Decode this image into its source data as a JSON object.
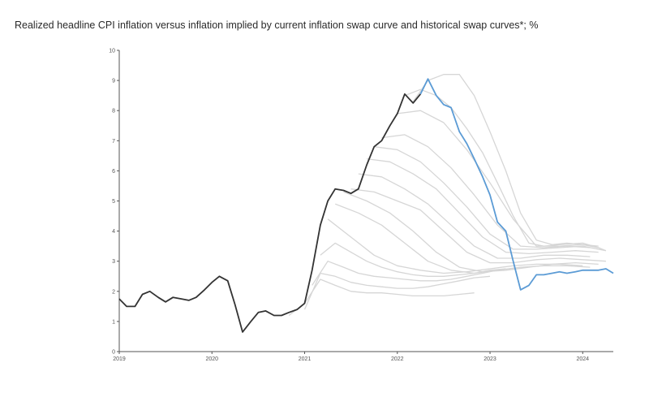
{
  "chart_data": {
    "type": "line",
    "title": "Realized headline CPI inflation versus inflation implied by current inflation swap curve and historical swap curves*; %",
    "xlabel": "",
    "ylabel": "",
    "ylim": [
      0,
      10
    ],
    "yticks": [
      0,
      1,
      2,
      3,
      4,
      5,
      6,
      7,
      8,
      9,
      10
    ],
    "xlim": [
      2019,
      2024.33
    ],
    "xticks": [
      2019,
      2020,
      2021,
      2022,
      2023,
      2024
    ],
    "grid": false,
    "colors": {
      "realized": "#333333",
      "current_swap": "#5b9bd5",
      "historical_swap": "#d6d6d6"
    },
    "realized": {
      "x": [
        2019.0,
        2019.08,
        2019.17,
        2019.25,
        2019.33,
        2019.42,
        2019.5,
        2019.58,
        2019.67,
        2019.75,
        2019.83,
        2019.92,
        2020.0,
        2020.08,
        2020.17,
        2020.25,
        2020.33,
        2020.42,
        2020.5,
        2020.58,
        2020.67,
        2020.75,
        2020.83,
        2020.92,
        2021.0,
        2021.08,
        2021.17,
        2021.25,
        2021.33,
        2021.42,
        2021.5,
        2021.58,
        2021.67,
        2021.75,
        2021.83,
        2021.92,
        2022.0,
        2022.08,
        2022.17,
        2022.25
      ],
      "y": [
        1.75,
        1.5,
        1.5,
        1.9,
        2.0,
        1.8,
        1.65,
        1.8,
        1.75,
        1.7,
        1.8,
        2.05,
        2.3,
        2.5,
        2.35,
        1.55,
        0.65,
        1.0,
        1.3,
        1.35,
        1.2,
        1.2,
        1.3,
        1.4,
        1.6,
        2.7,
        4.2,
        5.0,
        5.4,
        5.35,
        5.25,
        5.4,
        6.2,
        6.8,
        7.0,
        7.5,
        7.9,
        8.55,
        8.25,
        8.55
      ]
    },
    "current_swap": {
      "x": [
        2022.25,
        2022.33,
        2022.42,
        2022.5,
        2022.58,
        2022.67,
        2022.75,
        2022.83,
        2022.92,
        2023.0,
        2023.08,
        2023.17,
        2023.25,
        2023.33,
        2023.42,
        2023.5,
        2023.58,
        2023.67,
        2023.75,
        2023.83,
        2023.92,
        2024.0,
        2024.08,
        2024.17,
        2024.25,
        2024.33
      ],
      "y": [
        8.55,
        9.05,
        8.5,
        8.2,
        8.1,
        7.3,
        6.9,
        6.4,
        5.8,
        5.2,
        4.3,
        4.0,
        3.0,
        2.05,
        2.2,
        2.55,
        2.55,
        2.6,
        2.65,
        2.6,
        2.65,
        2.7,
        2.7,
        2.7,
        2.75,
        2.6
      ]
    },
    "historical_swaps": [
      {
        "x": [
          2020.83,
          2021.0,
          2021.17,
          2021.33,
          2021.5,
          2021.67,
          2021.83,
          2022.0,
          2022.17,
          2022.33,
          2022.5,
          2022.67,
          2022.83
        ],
        "y": [
          1.2,
          1.6,
          2.4,
          2.2,
          2.0,
          1.95,
          1.95,
          1.9,
          1.85,
          1.85,
          1.85,
          1.9,
          1.95
        ]
      },
      {
        "x": [
          2021.0,
          2021.17,
          2021.33,
          2021.5,
          2021.67,
          2021.83,
          2022.0,
          2022.17,
          2022.33,
          2022.5,
          2022.67,
          2022.83,
          2023.0
        ],
        "y": [
          1.4,
          2.6,
          2.5,
          2.3,
          2.2,
          2.15,
          2.1,
          2.1,
          2.15,
          2.25,
          2.35,
          2.45,
          2.5
        ]
      },
      {
        "x": [
          2021.08,
          2021.25,
          2021.42,
          2021.58,
          2021.75,
          2021.92,
          2022.08,
          2022.25,
          2022.42,
          2022.58,
          2022.75,
          2022.92,
          2023.08
        ],
        "y": [
          2.2,
          3.0,
          2.8,
          2.6,
          2.5,
          2.45,
          2.4,
          2.35,
          2.35,
          2.4,
          2.5,
          2.6,
          2.7
        ]
      },
      {
        "x": [
          2021.17,
          2021.33,
          2021.5,
          2021.67,
          2021.83,
          2022.0,
          2022.17,
          2022.33,
          2022.5,
          2022.67,
          2022.83,
          2023.0,
          2023.17
        ],
        "y": [
          3.2,
          3.6,
          3.3,
          3.0,
          2.8,
          2.65,
          2.55,
          2.5,
          2.5,
          2.55,
          2.6,
          2.7,
          2.75
        ]
      },
      {
        "x": [
          2021.25,
          2021.5,
          2021.75,
          2022.0,
          2022.25,
          2022.5,
          2022.75,
          2023.0,
          2023.25,
          2023.5,
          2023.75,
          2024.0
        ],
        "y": [
          4.4,
          3.8,
          3.2,
          2.85,
          2.7,
          2.6,
          2.65,
          2.75,
          2.85,
          2.9,
          2.9,
          2.85
        ]
      },
      {
        "x": [
          2021.33,
          2021.58,
          2021.83,
          2022.08,
          2022.33,
          2022.58,
          2022.83,
          2023.08,
          2023.33,
          2023.58,
          2023.83,
          2024.08
        ],
        "y": [
          4.9,
          4.6,
          4.2,
          3.6,
          3.0,
          2.7,
          2.6,
          2.7,
          2.8,
          2.85,
          2.85,
          2.8
        ]
      },
      {
        "x": [
          2021.42,
          2021.67,
          2021.92,
          2022.17,
          2022.42,
          2022.67,
          2022.92,
          2023.17,
          2023.42,
          2023.67,
          2023.92,
          2024.17
        ],
        "y": [
          5.3,
          5.0,
          4.6,
          4.0,
          3.3,
          2.8,
          2.65,
          2.7,
          2.8,
          2.9,
          2.95,
          2.9
        ]
      },
      {
        "x": [
          2021.5,
          2021.75,
          2022.0,
          2022.25,
          2022.5,
          2022.75,
          2023.0,
          2023.25,
          2023.5,
          2023.75,
          2024.0,
          2024.25
        ],
        "y": [
          5.4,
          5.3,
          5.0,
          4.7,
          4.0,
          3.3,
          2.95,
          2.95,
          3.05,
          3.1,
          3.05,
          3.0
        ]
      },
      {
        "x": [
          2021.58,
          2021.83,
          2022.08,
          2022.33,
          2022.58,
          2022.83,
          2023.08,
          2023.33,
          2023.58,
          2023.83,
          2024.08
        ],
        "y": [
          5.9,
          5.8,
          5.4,
          4.9,
          4.2,
          3.5,
          3.1,
          3.1,
          3.2,
          3.2,
          3.15
        ]
      },
      {
        "x": [
          2021.67,
          2021.92,
          2022.17,
          2022.42,
          2022.67,
          2022.92,
          2023.17,
          2023.42,
          2023.67,
          2023.92,
          2024.17
        ],
        "y": [
          6.4,
          6.3,
          5.9,
          5.4,
          4.6,
          3.8,
          3.3,
          3.25,
          3.3,
          3.35,
          3.3
        ]
      },
      {
        "x": [
          2021.75,
          2022.0,
          2022.25,
          2022.5,
          2022.75,
          2023.0,
          2023.25,
          2023.5,
          2023.75,
          2024.0,
          2024.25
        ],
        "y": [
          6.8,
          6.7,
          6.3,
          5.6,
          4.8,
          3.9,
          3.4,
          3.4,
          3.45,
          3.5,
          3.35
        ]
      },
      {
        "x": [
          2021.83,
          2022.08,
          2022.33,
          2022.58,
          2022.83,
          2023.08,
          2023.33,
          2023.58,
          2023.83,
          2024.08
        ],
        "y": [
          7.1,
          7.2,
          6.8,
          6.1,
          5.2,
          4.2,
          3.5,
          3.45,
          3.5,
          3.45
        ]
      },
      {
        "x": [
          2022.0,
          2022.25,
          2022.5,
          2022.75,
          2023.0,
          2023.25,
          2023.5,
          2023.75,
          2024.0,
          2024.17
        ],
        "y": [
          7.9,
          8.0,
          7.6,
          6.7,
          5.6,
          4.4,
          3.5,
          3.5,
          3.55,
          3.5
        ]
      },
      {
        "x": [
          2022.08,
          2022.25,
          2022.42,
          2022.58,
          2022.75,
          2022.92,
          2023.08,
          2023.25,
          2023.42,
          2023.58,
          2023.75,
          2024.0,
          2024.17
        ],
        "y": [
          8.5,
          8.7,
          8.5,
          8.1,
          7.4,
          6.6,
          5.6,
          4.5,
          3.6,
          3.5,
          3.55,
          3.6,
          3.45
        ]
      },
      {
        "x": [
          2022.17,
          2022.33,
          2022.5,
          2022.67,
          2022.83,
          2023.0,
          2023.17,
          2023.33,
          2023.5,
          2023.67,
          2023.83,
          2024.0,
          2024.17,
          2024.25
        ],
        "y": [
          8.3,
          9.0,
          9.2,
          9.2,
          8.5,
          7.3,
          6.0,
          4.6,
          3.7,
          3.55,
          3.6,
          3.55,
          3.45,
          3.35
        ]
      }
    ]
  }
}
